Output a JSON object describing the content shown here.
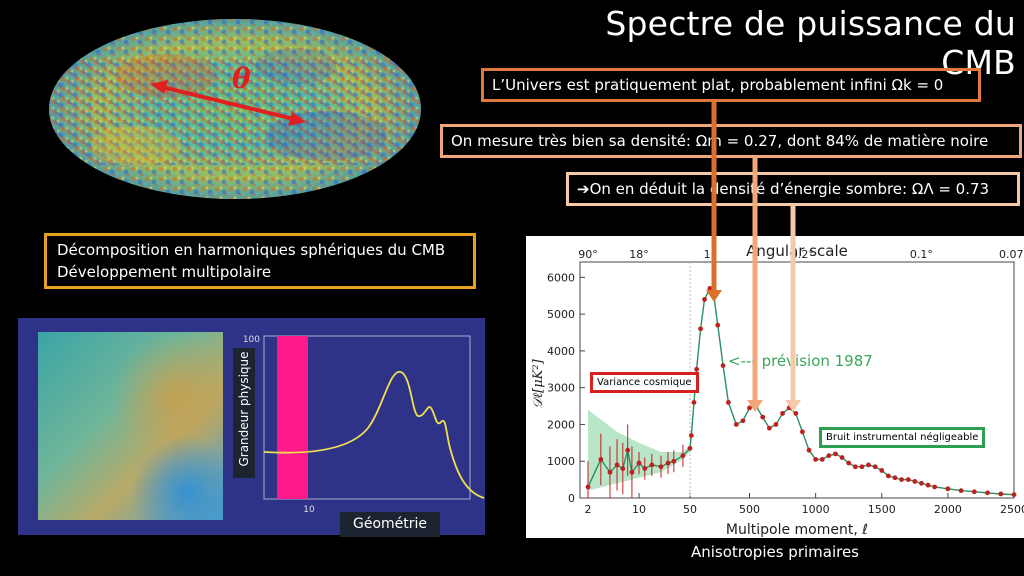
{
  "slide": {
    "title": "Spectre de puissance du CMB",
    "box1": "L’Univers est pratiquement plat, probablement infini  Ωk = 0",
    "box2": "On mesure très bien sa densité: Ωm = 0.27, dont 84% de matière noire",
    "box3_arrow": "➔",
    "box3": "On en déduit la densité d’énergie sombre: ΩΛ = 0.73",
    "harmo_line1": "Décomposition en harmoniques sphériques du CMB",
    "harmo_line2": "Développement multipolaire",
    "theta": "θ",
    "caption": "Anisotropies primaires",
    "colors": {
      "orange1": "#e07a3c",
      "orange2": "#f0a87a",
      "orange3": "#f6c9a8",
      "gold": "#e8a020",
      "navy": "#2e3387"
    }
  },
  "small_plot": {
    "ylabel": "Grandeur physique",
    "xlabel": "Géométrie",
    "ytick_top": "100",
    "xtick": "10"
  },
  "chart_data": {
    "type": "scatter",
    "title": "Angular scale",
    "xlabel": "Multipole moment, ℓ",
    "ylabel": "𝒟ℓ[μK²]",
    "ylim": [
      0,
      6200
    ],
    "yticks": [
      "0",
      "1000",
      "2000",
      "3000",
      "4000",
      "5000",
      "6000"
    ],
    "xticks": [
      "2",
      "10",
      "50",
      "500",
      "1000",
      "1500",
      "2000",
      "2500"
    ],
    "top_ticks": [
      "90°",
      "18°",
      "1°",
      "0.2°",
      "0.1°",
      "0.07°"
    ],
    "annotations": {
      "variance": "Variance cosmique",
      "prevision": "<--- prévision 1987",
      "bruit": "Bruit instrumental négligeable"
    },
    "points": [
      {
        "l": 2,
        "d": 300
      },
      {
        "l": 3,
        "d": 1050
      },
      {
        "l": 4,
        "d": 700
      },
      {
        "l": 5,
        "d": 900
      },
      {
        "l": 6,
        "d": 800
      },
      {
        "l": 7,
        "d": 1300
      },
      {
        "l": 8,
        "d": 700
      },
      {
        "l": 10,
        "d": 950
      },
      {
        "l": 12,
        "d": 800
      },
      {
        "l": 15,
        "d": 900
      },
      {
        "l": 20,
        "d": 850
      },
      {
        "l": 25,
        "d": 950
      },
      {
        "l": 30,
        "d": 1000
      },
      {
        "l": 40,
        "d": 1150
      },
      {
        "l": 50,
        "d": 1350
      },
      {
        "l": 60,
        "d": 1700
      },
      {
        "l": 80,
        "d": 2600
      },
      {
        "l": 100,
        "d": 3500
      },
      {
        "l": 130,
        "d": 4600
      },
      {
        "l": 160,
        "d": 5400
      },
      {
        "l": 200,
        "d": 5700
      },
      {
        "l": 230,
        "d": 5500
      },
      {
        "l": 260,
        "d": 4700
      },
      {
        "l": 300,
        "d": 3600
      },
      {
        "l": 340,
        "d": 2600
      },
      {
        "l": 400,
        "d": 2000
      },
      {
        "l": 450,
        "d": 2100
      },
      {
        "l": 500,
        "d": 2450
      },
      {
        "l": 550,
        "d": 2500
      },
      {
        "l": 600,
        "d": 2200
      },
      {
        "l": 650,
        "d": 1900
      },
      {
        "l": 700,
        "d": 2000
      },
      {
        "l": 750,
        "d": 2300
      },
      {
        "l": 800,
        "d": 2450
      },
      {
        "l": 850,
        "d": 2300
      },
      {
        "l": 900,
        "d": 1800
      },
      {
        "l": 950,
        "d": 1300
      },
      {
        "l": 1000,
        "d": 1050
      },
      {
        "l": 1050,
        "d": 1050
      },
      {
        "l": 1100,
        "d": 1150
      },
      {
        "l": 1150,
        "d": 1200
      },
      {
        "l": 1200,
        "d": 1100
      },
      {
        "l": 1250,
        "d": 950
      },
      {
        "l": 1300,
        "d": 850
      },
      {
        "l": 1350,
        "d": 850
      },
      {
        "l": 1400,
        "d": 900
      },
      {
        "l": 1450,
        "d": 850
      },
      {
        "l": 1500,
        "d": 750
      },
      {
        "l": 1550,
        "d": 600
      },
      {
        "l": 1600,
        "d": 550
      },
      {
        "l": 1650,
        "d": 500
      },
      {
        "l": 1700,
        "d": 500
      },
      {
        "l": 1750,
        "d": 450
      },
      {
        "l": 1800,
        "d": 400
      },
      {
        "l": 1850,
        "d": 350
      },
      {
        "l": 1900,
        "d": 300
      },
      {
        "l": 2000,
        "d": 250
      },
      {
        "l": 2100,
        "d": 200
      },
      {
        "l": 2200,
        "d": 170
      },
      {
        "l": 2300,
        "d": 140
      },
      {
        "l": 2400,
        "d": 110
      },
      {
        "l": 2500,
        "d": 90
      }
    ]
  }
}
